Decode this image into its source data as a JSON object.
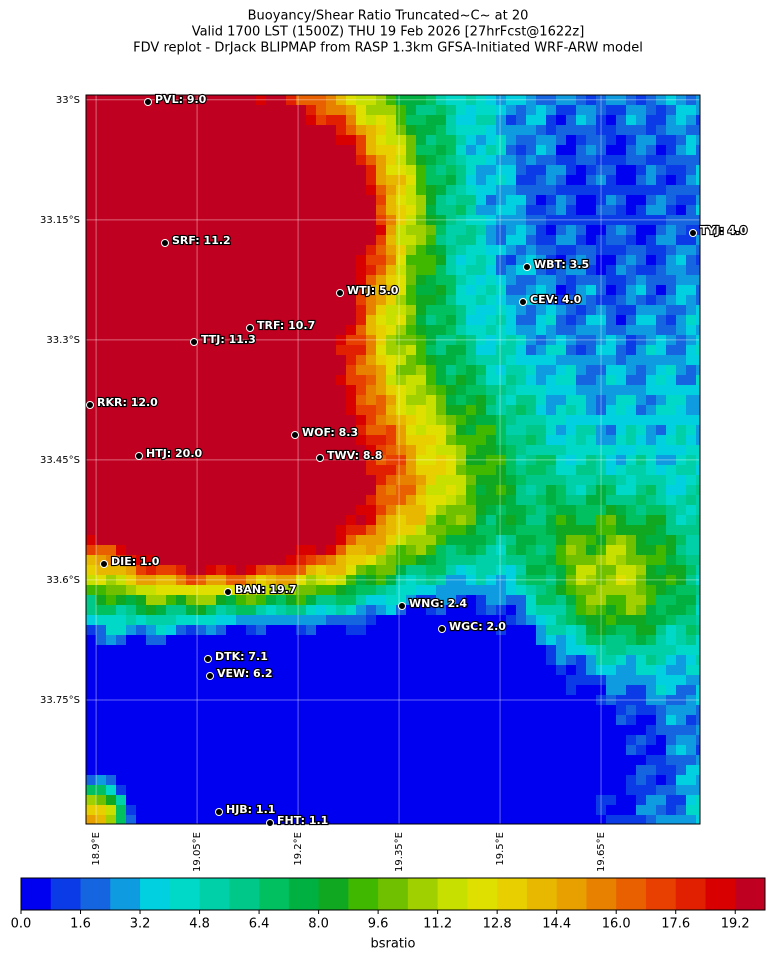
{
  "map": {
    "title": [
      "Buoyancy/Shear Ratio Truncated~C~    at 20",
      "Valid 1700 LST (1500Z) THU 19 Feb 2026 [27hrFcst@1622z]",
      "FDV replot - DrJack BLIPMAP from RASP 1.3km GFSA-Initiated WRF-ARW model"
    ],
    "lat_lim": [
      -33.905,
      -32.994
    ],
    "lon_lim": [
      18.885,
      19.797
    ],
    "lat_ticks": [
      {
        "value": -33,
        "label": "33°S"
      },
      {
        "value": -33.15,
        "label": "33.15°S"
      },
      {
        "value": -33.3,
        "label": "33.3°S"
      },
      {
        "value": -33.45,
        "label": "33.45°S"
      },
      {
        "value": -33.6,
        "label": "33.6°S"
      },
      {
        "value": -33.75,
        "label": "33.75°S"
      }
    ],
    "lon_ticks": [
      {
        "value": 18.9,
        "label": "18.9°E"
      },
      {
        "value": 19.05,
        "label": "19.05°E"
      },
      {
        "value": 19.2,
        "label": "19.2°E"
      },
      {
        "value": 19.35,
        "label": "19.35°E"
      },
      {
        "value": 19.5,
        "label": "19.5°E"
      },
      {
        "value": 19.65,
        "label": "19.65°E"
      }
    ],
    "stations": [
      "PVL: 9.0",
      "SRF: 11.2",
      "TYJ: 4.0",
      "WBT: 3.5",
      "WTJ: 5.0",
      "CEV: 4.0",
      "TRF: 10.7",
      "TTJ: 11.3",
      "RKR: 12.0",
      "WOF: 8.3",
      "HTJ: 20.0",
      "TWV: 8.8",
      "DIE: 1.0",
      "BAN: 19.7",
      "WNG: 2.4",
      "WGC: 2.0",
      "DTK: 7.1",
      "VEW: 6.2",
      "HJB: 1.1",
      "FHT: 1.1"
    ]
  },
  "colorbar": {
    "label": "bsratio",
    "lim": [
      0,
      20
    ],
    "ticks": [
      {
        "value": 0,
        "label": "0.0"
      },
      1.6,
      3.2,
      4.8,
      6.4,
      {
        "value": 8,
        "label": "8.0"
      },
      9.6,
      11.2,
      12.8,
      14.4,
      {
        "value": 16,
        "label": "16.0"
      },
      17.6,
      19.2
    ],
    "colors": [
      "#0000f0",
      "#0a3be6",
      "#1565e0",
      "#0f9be0",
      "#00d0e0",
      "#00d8c8",
      "#00d0a8",
      "#00c888",
      "#00c060",
      "#00b040",
      "#10a820",
      "#40b800",
      "#70c000",
      "#a0d000",
      "#c8e000",
      "#e0e000",
      "#e8d000",
      "#e8b800",
      "#e8a000",
      "#e88000",
      "#e86000",
      "#e84000",
      "#e02000",
      "#d80000",
      "#c00020"
    ]
  }
}
